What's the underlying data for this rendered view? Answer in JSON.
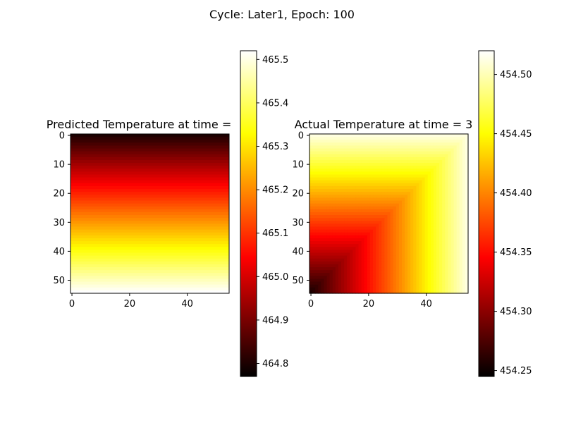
{
  "figure": {
    "suptitle": "Cycle: Later1, Epoch: 100"
  },
  "chart_data": [
    {
      "type": "heatmap",
      "title": "Predicted Temperature at time =",
      "colormap": "hot",
      "grid_size": [
        55,
        55
      ],
      "pattern": "vertical-gradient",
      "xlim": [
        0,
        54
      ],
      "ylim": [
        54,
        0
      ],
      "xticks": [
        0,
        20,
        40
      ],
      "yticks": [
        0,
        10,
        20,
        30,
        40,
        50
      ],
      "colorbar": {
        "min": 464.77,
        "max": 465.52,
        "ticks": [
          464.8,
          464.9,
          465.0,
          465.1,
          465.2,
          465.3,
          465.4,
          465.5
        ],
        "tick_labels": [
          "464.8",
          "464.9",
          "465.0",
          "465.1",
          "465.2",
          "465.3",
          "465.4",
          "465.5"
        ]
      }
    },
    {
      "type": "heatmap",
      "title": "Actual Temperature at time = 3",
      "colormap": "hot",
      "grid_size": [
        55,
        55
      ],
      "pattern": "diagonal-gradient",
      "xlim": [
        0,
        54
      ],
      "ylim": [
        54,
        0
      ],
      "xticks": [
        0,
        20,
        40
      ],
      "yticks": [
        0,
        10,
        20,
        30,
        40,
        50
      ],
      "colorbar": {
        "min": 454.245,
        "max": 454.52,
        "ticks": [
          454.25,
          454.3,
          454.35,
          454.4,
          454.45,
          454.5
        ],
        "tick_labels": [
          "454.25",
          "454.30",
          "454.35",
          "454.40",
          "454.45",
          "454.50"
        ]
      }
    }
  ]
}
